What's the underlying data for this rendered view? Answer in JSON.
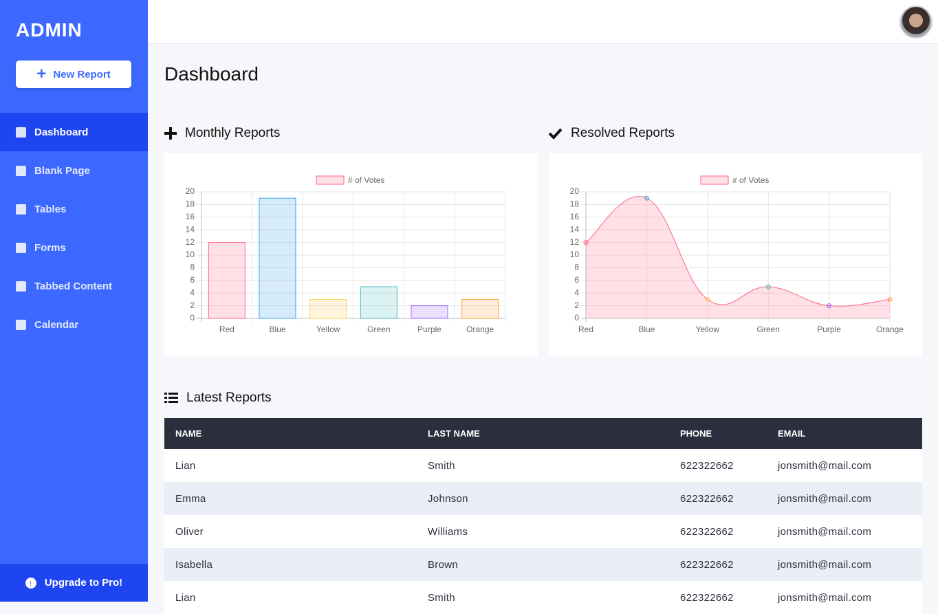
{
  "sidebar": {
    "logo": "ADMIN",
    "button": "New Report",
    "items": [
      "Dashboard",
      "Blank Page",
      "Tables",
      "Forms",
      "Tabbed Content",
      "Calendar"
    ],
    "footer": "Upgrade to Pro!"
  },
  "page_title": "Dashboard",
  "chart_data": [
    {
      "type": "bar",
      "title": "Monthly Reports",
      "categories": [
        "Red",
        "Blue",
        "Yellow",
        "Green",
        "Purple",
        "Orange"
      ],
      "series": [
        {
          "name": "# of Votes",
          "values": [
            12,
            19,
            3,
            5,
            2,
            3
          ],
          "colors": [
            "#ff6384",
            "#36a2eb",
            "#ffce56",
            "#4bc0c0",
            "#9966ff",
            "#ff9f40"
          ]
        }
      ],
      "ylim": [
        0,
        20
      ],
      "yticks": [
        0,
        2,
        4,
        6,
        8,
        10,
        12,
        14,
        16,
        18,
        20
      ],
      "grid": true
    },
    {
      "type": "line",
      "title": "Resolved Reports",
      "categories": [
        "Red",
        "Blue",
        "Yellow",
        "Green",
        "Purple",
        "Orange"
      ],
      "series": [
        {
          "name": "# of Votes",
          "color": "#ff6384",
          "values": [
            12,
            19,
            3,
            5,
            2,
            3
          ],
          "colors": [
            "#ff6384",
            "#36a2eb",
            "#ffce56",
            "#4bc0c0",
            "#9966ff",
            "#ff9f40"
          ]
        }
      ],
      "ylim": [
        0,
        20
      ],
      "yticks": [
        0,
        2,
        4,
        6,
        8,
        10,
        12,
        14,
        16,
        18,
        20
      ],
      "grid": true
    }
  ],
  "table": {
    "title": "Latest Reports",
    "header": [
      "NAME",
      "LAST NAME",
      "PHONE",
      "EMAIL"
    ],
    "rows": [
      [
        "Lian",
        "Smith",
        "622322662",
        "jonsmith@mail.com"
      ],
      [
        "Emma",
        "Johnson",
        "622322662",
        "jonsmith@mail.com"
      ],
      [
        "Oliver",
        "Williams",
        "622322662",
        "jonsmith@mail.com"
      ],
      [
        "Isabella",
        "Brown",
        "622322662",
        "jonsmith@mail.com"
      ],
      [
        "Lian",
        "Smith",
        "622322662",
        "jonsmith@mail.com"
      ]
    ]
  }
}
